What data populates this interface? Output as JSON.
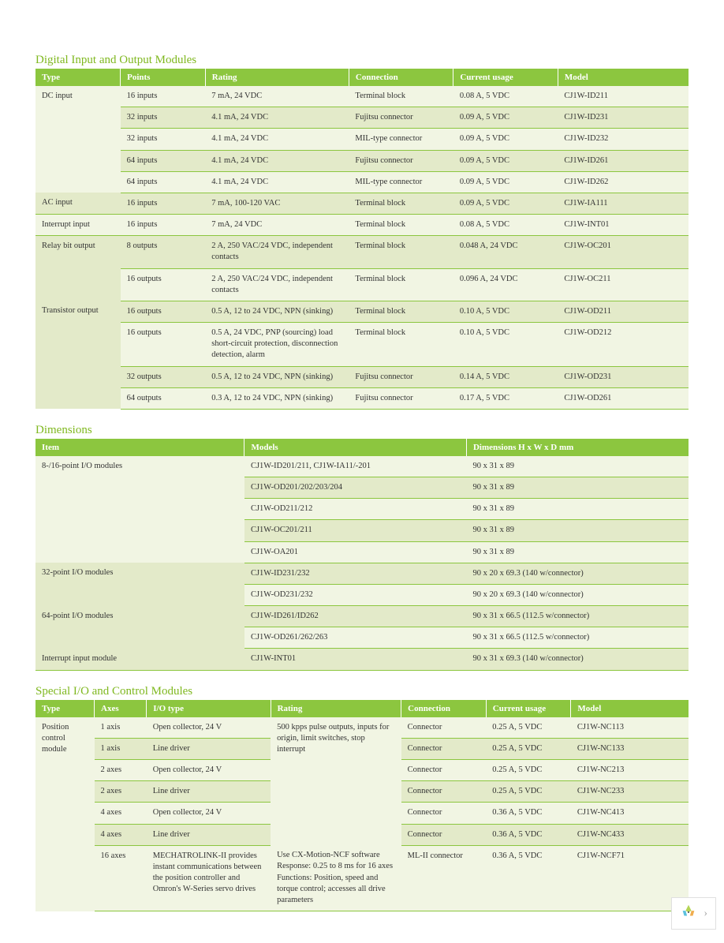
{
  "colors": {
    "header_bg": "#8cc63f",
    "header_text": "#ffffff",
    "row_light": "#f1f5e3",
    "row_dark": "#e3eac9",
    "border": "#8cc63f",
    "title": "#7fb81f",
    "body_text": "#333333"
  },
  "table1": {
    "title": "Digital Input and Output Modules",
    "col_widths": [
      "13%",
      "13%",
      "22%",
      "16%",
      "16%",
      "20%"
    ],
    "headers": [
      "Type",
      "Points",
      "Rating",
      "Connection",
      "Current usage",
      "Model"
    ],
    "rows": [
      {
        "type": "DC input",
        "type_span": 5,
        "cells": [
          "16 inputs",
          "7 mA, 24 VDC",
          "Terminal block",
          "0.08 A, 5 VDC",
          "CJ1W-ID211"
        ],
        "shade": "light"
      },
      {
        "cells": [
          "32 inputs",
          "4.1 mA, 24 VDC",
          "Fujitsu connector",
          "0.09 A, 5 VDC",
          "CJ1W-ID231"
        ],
        "shade": "dark"
      },
      {
        "cells": [
          "32 inputs",
          "4.1 mA, 24 VDC",
          "MIL-type connector",
          "0.09 A, 5 VDC",
          "CJ1W-ID232"
        ],
        "shade": "light"
      },
      {
        "cells": [
          "64 inputs",
          "4.1 mA, 24 VDC",
          "Fujitsu connector",
          "0.09 A, 5 VDC",
          "CJ1W-ID261"
        ],
        "shade": "dark"
      },
      {
        "cells": [
          "64 inputs",
          "4.1 mA, 24 VDC",
          "MIL-type connector",
          "0.09 A, 5 VDC",
          "CJ1W-ID262"
        ],
        "shade": "light"
      },
      {
        "type": "AC input",
        "type_span": 1,
        "cells": [
          "16 inputs",
          "7 mA, 100-120 VAC",
          "Terminal block",
          "0.09 A, 5 VDC",
          "CJ1W-IA111"
        ],
        "shade": "dark"
      },
      {
        "type": "Interrupt input",
        "type_span": 1,
        "cells": [
          "16 inputs",
          "7 mA, 24 VDC",
          "Terminal block",
          "0.08 A, 5 VDC",
          "CJ1W-INT01"
        ],
        "shade": "light"
      },
      {
        "type": "Relay bit output",
        "type_span": 2,
        "cells": [
          "8 outputs",
          "2 A, 250 VAC/24 VDC, independent contacts",
          "Terminal block",
          "0.048 A, 24 VDC",
          "CJ1W-OC201"
        ],
        "shade": "dark"
      },
      {
        "cells": [
          "16 outputs",
          "2 A, 250 VAC/24 VDC, independent contacts",
          "Terminal block",
          "0.096 A, 24 VDC",
          "CJ1W-OC211"
        ],
        "shade": "light"
      },
      {
        "type": "Transistor output",
        "type_span": 4,
        "cells": [
          "16 outputs",
          "0.5 A, 12 to 24 VDC, NPN (sinking)",
          "Terminal block",
          "0.10 A, 5 VDC",
          "CJ1W-OD211"
        ],
        "shade": "dark"
      },
      {
        "cells": [
          "16 outputs",
          "0.5 A, 24 VDC, PNP (sourcing) load short-circuit protection, disconnection detection, alarm",
          "Terminal block",
          "0.10 A, 5 VDC",
          "CJ1W-OD212"
        ],
        "shade": "light"
      },
      {
        "cells": [
          "32 outputs",
          "0.5 A, 12 to 24 VDC, NPN (sinking)",
          "Fujitsu connector",
          "0.14 A, 5 VDC",
          "CJ1W-OD231"
        ],
        "shade": "dark"
      },
      {
        "cells": [
          "64 outputs",
          "0.3 A, 12 to 24 VDC, NPN (sinking)",
          "Fujitsu connector",
          "0.17 A, 5 VDC",
          "CJ1W-OD261"
        ],
        "shade": "light"
      }
    ]
  },
  "table2": {
    "title": "Dimensions",
    "col_widths": [
      "32%",
      "34%",
      "34%"
    ],
    "headers": [
      "Item",
      "Models",
      "Dimensions H x W x D mm"
    ],
    "rows": [
      {
        "item": "8-/16-point I/O modules",
        "item_span": 5,
        "cells": [
          "CJ1W-ID201/211, CJ1W-IA11/-201",
          "90 x 31 x 89"
        ],
        "shade": "light"
      },
      {
        "cells": [
          "CJ1W-OD201/202/203/204",
          "90 x 31 x 89"
        ],
        "shade": "dark"
      },
      {
        "cells": [
          "CJ1W-OD211/212",
          "90 x 31 x 89"
        ],
        "shade": "light"
      },
      {
        "cells": [
          "CJ1W-OC201/211",
          "90 x 31 x 89"
        ],
        "shade": "dark"
      },
      {
        "cells": [
          "CJ1W-OA201",
          "90 x 31 x 89"
        ],
        "shade": "light"
      },
      {
        "item": "32-point I/O modules",
        "item_span": 2,
        "cells": [
          "CJ1W-ID231/232",
          "90 x 20 x 69.3 (140 w/connector)"
        ],
        "shade": "dark"
      },
      {
        "cells": [
          "CJ1W-OD231/232",
          "90 x 20 x 69.3 (140 w/connector)"
        ],
        "shade": "light"
      },
      {
        "item": "64-point I/O modules",
        "item_span": 2,
        "cells": [
          "CJ1W-ID261/ID262",
          "90 x 31 x 66.5 (112.5 w/connector)"
        ],
        "shade": "dark"
      },
      {
        "cells": [
          "CJ1W-OD261/262/263",
          "90 x 31 x 66.5 (112.5 w/connector)"
        ],
        "shade": "light"
      },
      {
        "item": "Interrupt input module",
        "item_span": 1,
        "cells": [
          "CJ1W-INT01",
          "90 x 31 x 69.3 (140 w/connector)"
        ],
        "shade": "dark"
      }
    ]
  },
  "table3": {
    "title": "Special I/O and Control Modules",
    "col_widths": [
      "9%",
      "8%",
      "19%",
      "20%",
      "13%",
      "13%",
      "18%"
    ],
    "headers": [
      "Type",
      "Axes",
      "I/O type",
      "Rating",
      "Connection",
      "Current usage",
      "Model"
    ],
    "rows": [
      {
        "type": "Position control module",
        "type_span": 7,
        "axes": "1 axis",
        "io": "Open collector, 24 V",
        "rating": "500 kpps pulse outputs, inputs for origin, limit switches, stop interrupt",
        "rating_span": 6,
        "conn": "Connector",
        "curr": "0.25 A, 5 VDC",
        "model": "CJ1W-NC113",
        "shade": "light"
      },
      {
        "axes": "1 axis",
        "io": "Line driver",
        "conn": "Connector",
        "curr": "0.25 A, 5 VDC",
        "model": "CJ1W-NC133",
        "shade": "dark"
      },
      {
        "axes": "2 axes",
        "io": "Open collector, 24 V",
        "conn": "Connector",
        "curr": "0.25 A, 5 VDC",
        "model": "CJ1W-NC213",
        "shade": "light"
      },
      {
        "axes": "2 axes",
        "io": "Line driver",
        "conn": "Connector",
        "curr": "0.25 A, 5 VDC",
        "model": "CJ1W-NC233",
        "shade": "dark"
      },
      {
        "axes": "4 axes",
        "io": "Open collector, 24 V",
        "conn": "Connector",
        "curr": "0.36 A, 5 VDC",
        "model": "CJ1W-NC413",
        "shade": "light"
      },
      {
        "axes": "4 axes",
        "io": "Line driver",
        "conn": "Connector",
        "curr": "0.36 A, 5 VDC",
        "model": "CJ1W-NC433",
        "shade": "dark"
      },
      {
        "axes": "16 axes",
        "io": "MECHATROLINK-II provides instant communications between the position controller and Omron's W-Series servo drives",
        "rating2": "Use CX-Motion-NCF software Response: 0.25 to 8 ms for 16 axes Functions: Position, speed and torque control; accesses all drive parameters",
        "conn": "ML-II connector",
        "curr": "0.36 A, 5 VDC",
        "model": "CJ1W-NCF71",
        "shade": "light"
      }
    ]
  },
  "footer": {
    "chevron": "›"
  }
}
